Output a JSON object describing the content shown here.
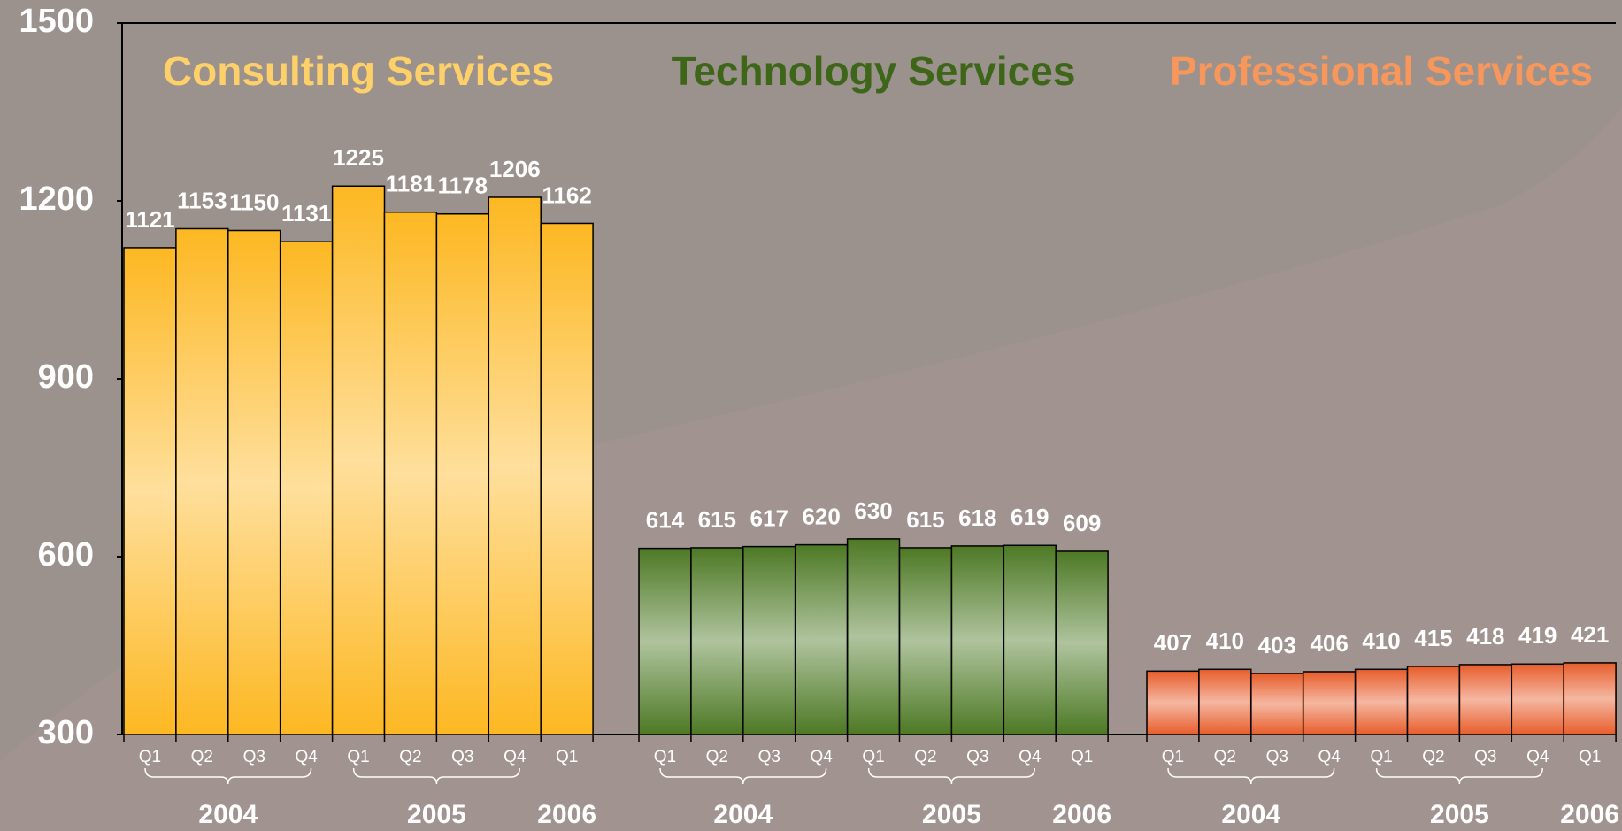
{
  "chart_data": {
    "type": "bar",
    "ylim": [
      300,
      1500
    ],
    "yticks": [
      300,
      600,
      900,
      1200,
      1500
    ],
    "groups": [
      {
        "name": "Consulting Services",
        "color": "#fdb823",
        "title_color": "#fdd06a",
        "categories": [
          "Q1",
          "Q2",
          "Q3",
          "Q4",
          "Q1",
          "Q2",
          "Q3",
          "Q4",
          "Q1"
        ],
        "years": [
          "2004",
          "2005",
          "2006"
        ],
        "values": [
          1121,
          1153,
          1150,
          1131,
          1225,
          1181,
          1178,
          1206,
          1162
        ]
      },
      {
        "name": "Technology Services",
        "color": "#4e7a26",
        "title_color": "#3d6618",
        "categories": [
          "Q1",
          "Q2",
          "Q3",
          "Q4",
          "Q1",
          "Q2",
          "Q3",
          "Q4",
          "Q1"
        ],
        "years": [
          "2004",
          "2005",
          "2006"
        ],
        "values": [
          614,
          615,
          617,
          620,
          630,
          615,
          618,
          619,
          609
        ]
      },
      {
        "name": "Professional Services",
        "color": "#e8602f",
        "title_color": "#f7975c",
        "categories": [
          "Q1",
          "Q2",
          "Q3",
          "Q4",
          "Q1",
          "Q2",
          "Q3",
          "Q4",
          "Q1"
        ],
        "years": [
          "2004",
          "2005",
          "2006"
        ],
        "values": [
          407,
          410,
          403,
          406,
          410,
          415,
          418,
          419,
          421
        ]
      }
    ]
  }
}
